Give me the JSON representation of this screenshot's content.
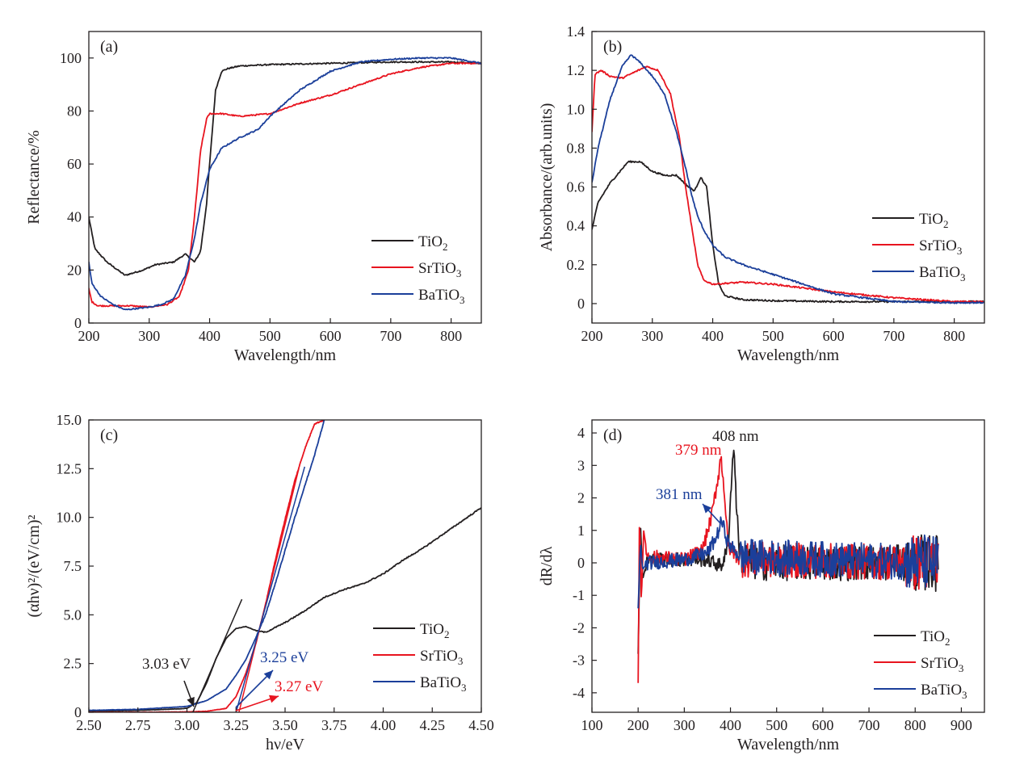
{
  "colors": {
    "TiO2": "#231f20",
    "SrTiO3": "#e8141f",
    "BaTiO3": "#1b3f9a"
  },
  "legend_labels": [
    {
      "base": "TiO",
      "sub": "2"
    },
    {
      "base": "SrTiO",
      "sub": "3"
    },
    {
      "base": "BaTiO",
      "sub": "3"
    }
  ],
  "chart_data": [
    {
      "panel": "(a)",
      "type": "line",
      "xlabel": "Wavelength/nm",
      "ylabel": "Reflectance/%",
      "xlim": [
        200,
        850
      ],
      "ylim": [
        0,
        110
      ],
      "xticks": [
        200,
        300,
        400,
        500,
        600,
        700,
        800
      ],
      "xtick_labels": [
        "200",
        "300",
        "400",
        "500",
        "600",
        "700",
        "800"
      ],
      "yticks": [
        0,
        20,
        40,
        60,
        80,
        100
      ],
      "ytick_labels": [
        "0",
        "20",
        "40",
        "60",
        "80",
        "100"
      ],
      "legend_position": "bottom-right",
      "series": [
        {
          "name": "TiO2",
          "x": [
            200,
            210,
            230,
            260,
            290,
            310,
            340,
            360,
            375,
            385,
            395,
            400,
            410,
            420,
            430,
            450,
            500,
            600,
            700,
            800,
            850
          ],
          "y": [
            40,
            28,
            23,
            18,
            20,
            22,
            23,
            26,
            23,
            27,
            45,
            60,
            88,
            95,
            96,
            97,
            97.5,
            98,
            98.5,
            98.5,
            98
          ]
        },
        {
          "name": "SrTiO3",
          "x": [
            200,
            205,
            215,
            240,
            270,
            300,
            330,
            350,
            365,
            375,
            385,
            395,
            400,
            420,
            450,
            500,
            550,
            600,
            650,
            700,
            750,
            800,
            850
          ],
          "y": [
            13,
            8,
            6.5,
            6.5,
            6.5,
            6,
            7,
            10,
            20,
            40,
            65,
            77,
            79,
            79,
            78,
            79,
            83,
            86,
            90,
            94,
            96.5,
            98,
            98
          ]
        },
        {
          "name": "BaTiO3",
          "x": [
            200,
            205,
            220,
            240,
            260,
            280,
            300,
            320,
            340,
            360,
            375,
            385,
            400,
            420,
            450,
            480,
            500,
            550,
            600,
            650,
            700,
            750,
            800,
            850
          ],
          "y": [
            23,
            15,
            10,
            7,
            5,
            5.5,
            6,
            7,
            9,
            18,
            32,
            45,
            58,
            66,
            70,
            73,
            78,
            88,
            95,
            98.5,
            99.5,
            100,
            100,
            98
          ]
        }
      ],
      "annotations": []
    },
    {
      "panel": "(b)",
      "type": "line",
      "xlabel": "Wavelength/nm",
      "ylabel": "Absorbance/(arb.units)",
      "xlim": [
        200,
        850
      ],
      "ylim": [
        -0.1,
        1.4
      ],
      "xticks": [
        200,
        300,
        400,
        500,
        600,
        700,
        800
      ],
      "xtick_labels": [
        "200",
        "300",
        "400",
        "500",
        "600",
        "700",
        "800"
      ],
      "yticks": [
        0,
        0.2,
        0.4,
        0.6,
        0.8,
        1.0,
        1.2,
        1.4
      ],
      "ytick_labels": [
        "0",
        "0.2",
        "0.4",
        "0.6",
        "0.8",
        "1.0",
        "1.2",
        "1.4"
      ],
      "legend_position": "right",
      "series": [
        {
          "name": "TiO2",
          "x": [
            200,
            210,
            230,
            260,
            280,
            300,
            320,
            340,
            360,
            370,
            380,
            390,
            400,
            410,
            420,
            450,
            500,
            600,
            700,
            800,
            850
          ],
          "y": [
            0.38,
            0.52,
            0.62,
            0.73,
            0.73,
            0.68,
            0.66,
            0.66,
            0.6,
            0.58,
            0.65,
            0.6,
            0.3,
            0.1,
            0.04,
            0.02,
            0.015,
            0.01,
            0.01,
            0.01,
            0.01
          ]
        },
        {
          "name": "SrTiO3",
          "x": [
            200,
            205,
            215,
            230,
            250,
            270,
            290,
            310,
            330,
            345,
            355,
            365,
            375,
            385,
            400,
            450,
            500,
            550,
            600,
            700,
            800,
            850
          ],
          "y": [
            0.88,
            1.18,
            1.2,
            1.17,
            1.16,
            1.19,
            1.22,
            1.2,
            1.08,
            0.85,
            0.6,
            0.4,
            0.2,
            0.12,
            0.1,
            0.11,
            0.1,
            0.08,
            0.06,
            0.03,
            0.01,
            0.01
          ]
        },
        {
          "name": "BaTiO3",
          "x": [
            200,
            210,
            230,
            250,
            265,
            280,
            300,
            320,
            340,
            355,
            365,
            375,
            385,
            400,
            420,
            450,
            500,
            550,
            600,
            700,
            800,
            850
          ],
          "y": [
            0.62,
            0.8,
            1.05,
            1.22,
            1.28,
            1.24,
            1.17,
            1.08,
            0.88,
            0.7,
            0.56,
            0.45,
            0.38,
            0.3,
            0.24,
            0.2,
            0.15,
            0.1,
            0.05,
            0.01,
            0.005,
            0.005
          ]
        }
      ],
      "annotations": []
    },
    {
      "panel": "(c)",
      "type": "line",
      "xlabel": "hν/eV",
      "ylabel": "(αhν)²/(eV/cm)²",
      "xlim": [
        2.5,
        4.5
      ],
      "ylim": [
        0,
        15
      ],
      "xticks": [
        2.5,
        2.75,
        3.0,
        3.25,
        3.5,
        3.75,
        4.0,
        4.25,
        4.5
      ],
      "xtick_labels": [
        "2.50",
        "2.75",
        "3.00",
        "3.25",
        "3.50",
        "3.75",
        "4.00",
        "4.25",
        "4.50"
      ],
      "yticks": [
        0,
        2.5,
        5.0,
        7.5,
        10.0,
        12.5,
        15.0
      ],
      "ytick_labels": [
        "0",
        "2.5",
        "5.0",
        "7.5",
        "10.0",
        "12.5",
        "15.0"
      ],
      "legend_position": "bottom-right",
      "series": [
        {
          "name": "TiO2",
          "x": [
            2.5,
            2.75,
            2.9,
            3.0,
            3.05,
            3.1,
            3.15,
            3.2,
            3.25,
            3.3,
            3.35,
            3.4,
            3.5,
            3.6,
            3.7,
            3.8,
            3.9,
            4.0,
            4.1,
            4.2,
            4.3,
            4.4,
            4.5
          ],
          "y": [
            0.05,
            0.1,
            0.15,
            0.2,
            0.5,
            1.5,
            2.8,
            3.8,
            4.3,
            4.4,
            4.2,
            4.1,
            4.6,
            5.2,
            5.9,
            6.3,
            6.6,
            7.1,
            7.8,
            8.4,
            9.1,
            9.8,
            10.5
          ]
        },
        {
          "name": "SrTiO3",
          "x": [
            2.5,
            2.75,
            3.0,
            3.1,
            3.2,
            3.25,
            3.3,
            3.35,
            3.4,
            3.45,
            3.5,
            3.55,
            3.6,
            3.65,
            3.7
          ],
          "y": [
            0,
            0,
            0.02,
            0.05,
            0.2,
            0.8,
            2.0,
            3.5,
            5.5,
            7.8,
            9.9,
            11.9,
            13.5,
            14.8,
            15.0
          ]
        },
        {
          "name": "BaTiO3",
          "x": [
            2.5,
            2.75,
            3.0,
            3.1,
            3.2,
            3.25,
            3.3,
            3.35,
            3.4,
            3.45,
            3.5,
            3.55,
            3.6,
            3.65,
            3.7
          ],
          "y": [
            0.1,
            0.15,
            0.3,
            0.6,
            1.2,
            1.9,
            2.7,
            3.8,
            5.0,
            6.6,
            8.3,
            10.0,
            11.6,
            13.2,
            15.0
          ]
        }
      ],
      "annotations": [
        {
          "text": "3.03 eV",
          "color": "TiO2"
        },
        {
          "text": "3.25 eV",
          "color": "BaTiO3"
        },
        {
          "text": "3.27 eV",
          "color": "SrTiO3"
        }
      ]
    },
    {
      "panel": "(d)",
      "type": "line",
      "xlabel": "Wavelength/nm",
      "ylabel": "dR/dλ",
      "xlim": [
        100,
        950
      ],
      "ylim": [
        -4.6,
        4.4
      ],
      "xticks": [
        100,
        200,
        300,
        400,
        500,
        600,
        700,
        800,
        900
      ],
      "xtick_labels": [
        "100",
        "200",
        "300",
        "400",
        "500",
        "600",
        "700",
        "800",
        "900"
      ],
      "yticks": [
        -4,
        -3,
        -2,
        -1,
        0,
        1,
        2,
        3,
        4
      ],
      "ytick_labels": [
        "-4",
        "-3",
        "-2",
        "-1",
        "0",
        "1",
        "2",
        "3",
        "4"
      ],
      "legend_position": "bottom-right",
      "series": [
        {
          "name": "TiO2",
          "x": [
            200,
            205,
            210,
            220,
            300,
            350,
            380,
            395,
            400,
            405,
            408,
            412,
            420,
            450,
            850
          ],
          "y": [
            -2.8,
            1.2,
            -0.5,
            0.1,
            0.1,
            0.1,
            -0.1,
            0.5,
            2.0,
            3.2,
            3.6,
            2.0,
            0.2,
            0.0,
            0.0
          ]
        },
        {
          "name": "SrTiO3",
          "x": [
            200,
            203,
            207,
            212,
            220,
            300,
            340,
            360,
            375,
            379,
            385,
            395,
            420,
            850
          ],
          "y": [
            -3.7,
            1.6,
            -1.2,
            1.0,
            0.2,
            0.1,
            0.4,
            1.5,
            2.8,
            3.3,
            2.5,
            0.5,
            0.1,
            0.0
          ]
        },
        {
          "name": "BaTiO3",
          "x": [
            200,
            205,
            210,
            220,
            300,
            350,
            370,
            381,
            395,
            420,
            850
          ],
          "y": [
            -1.4,
            0.6,
            -0.2,
            0.0,
            0.1,
            0.3,
            0.8,
            1.3,
            0.6,
            0.2,
            0.0
          ]
        }
      ],
      "annotations": [
        {
          "text": "408 nm",
          "color": "TiO2"
        },
        {
          "text": "379 nm",
          "color": "SrTiO3"
        },
        {
          "text": "381 nm",
          "color": "BaTiO3"
        }
      ]
    }
  ]
}
